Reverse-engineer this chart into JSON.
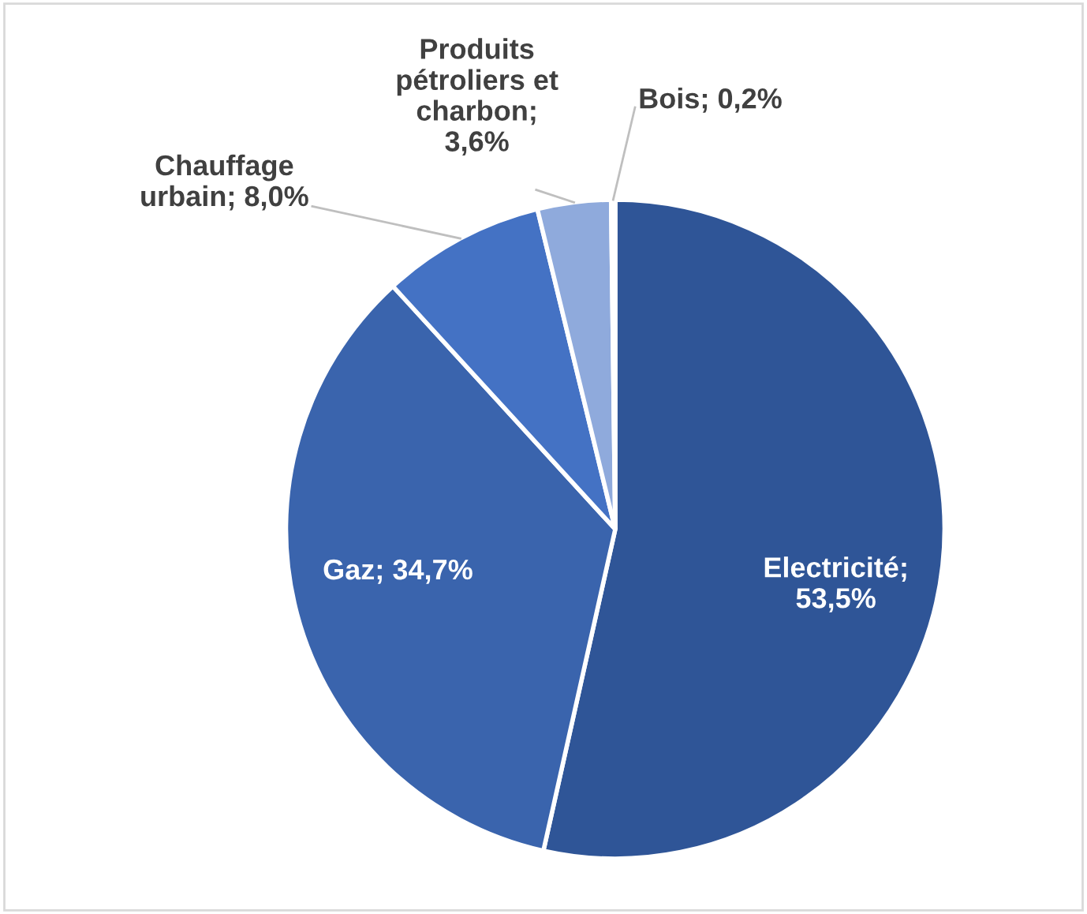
{
  "chart_data": {
    "type": "pie",
    "categories": [
      "Electricité",
      "Gaz",
      "Chauffage urbain",
      "Produits pétroliers et charbon",
      "Bois"
    ],
    "values": [
      53.5,
      34.7,
      8.0,
      3.6,
      0.2
    ],
    "colors": [
      "#2f5597",
      "#3a64ad",
      "#4472c4",
      "#8faadc",
      "#b4c7e7"
    ],
    "value_labels": [
      "; 53,5%",
      "; 34,7%",
      "; 8,0%",
      "; 3,6%",
      "; 0,2%"
    ],
    "legend": false
  }
}
